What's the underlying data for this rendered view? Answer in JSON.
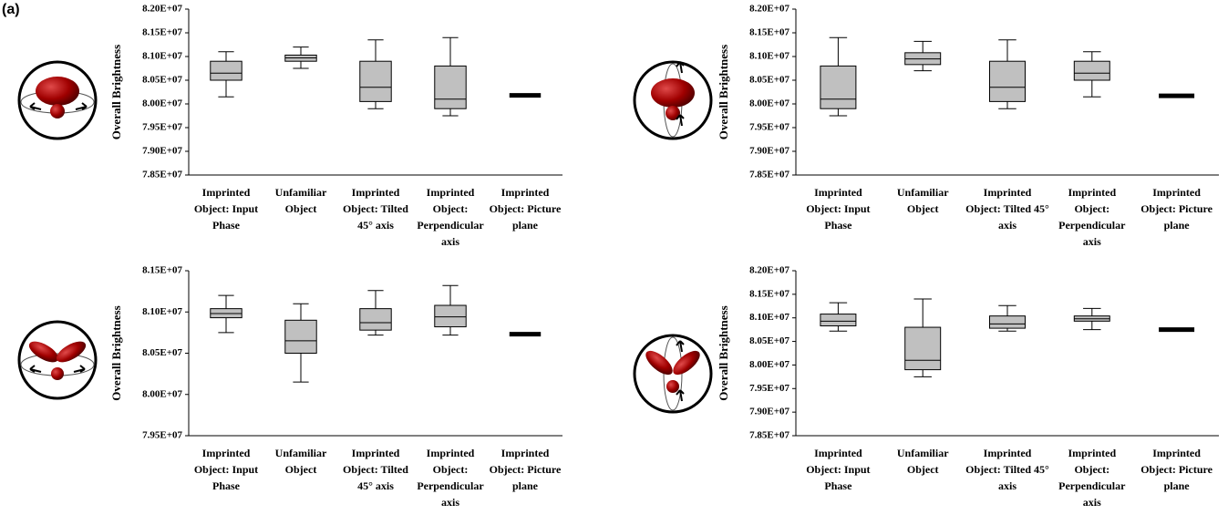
{
  "label": "(a)",
  "chart_data": [
    {
      "type": "box",
      "y_label": "Overall Brightness",
      "color": "#c0c0c0",
      "categories": [
        "Imprinted Object: Input Phase",
        "Unfamiliar Object",
        "Imprinted Object: Tilted 45° axis",
        "Imprinted Object: Perpendicular axis",
        "Imprinted Object: Picture plane"
      ],
      "boxes": [
        {
          "min": 80150000,
          "q1": 80500000,
          "median": 80650000,
          "q3": 80900000,
          "max": 81100000
        },
        {
          "min": 80750000,
          "q1": 80900000,
          "median": 80970000,
          "q3": 81030000,
          "max": 81200000
        },
        {
          "min": 79900000,
          "q1": 80050000,
          "median": 80350000,
          "q3": 80900000,
          "max": 81350000
        },
        {
          "min": 79750000,
          "q1": 79900000,
          "median": 80100000,
          "q3": 80800000,
          "max": 81400000
        },
        {
          "min": 80180000,
          "q1": 80180000,
          "median": 80180000,
          "q3": 80180000,
          "max": 80180000
        }
      ],
      "ylim": [
        78500000,
        82000000
      ],
      "yticks": [
        {
          "value": 78500000,
          "label": "7.85E+07"
        },
        {
          "value": 79000000,
          "label": "7.90E+07"
        },
        {
          "value": 79500000,
          "label": "7.95E+07"
        },
        {
          "value": 80000000,
          "label": "8.00E+07"
        },
        {
          "value": 80500000,
          "label": "8.05E+07"
        },
        {
          "value": 81000000,
          "label": "8.10E+07"
        },
        {
          "value": 81500000,
          "label": "8.15E+07"
        },
        {
          "value": 82000000,
          "label": "8.20E+07"
        }
      ]
    },
    {
      "type": "box",
      "y_label": "Overall Brightness",
      "color": "#c0c0c0",
      "categories": [
        "Imprinted Object: Input Phase",
        "Unfamiliar Object",
        "Imprinted Object: Tilted 45° axis",
        "Imprinted Object: Perpendicular axis",
        "Imprinted Object: Picture plane"
      ],
      "boxes": [
        {
          "min": 79750000,
          "q1": 79900000,
          "median": 80100000,
          "q3": 80800000,
          "max": 81400000
        },
        {
          "min": 80700000,
          "q1": 80830000,
          "median": 80950000,
          "q3": 81080000,
          "max": 81320000
        },
        {
          "min": 79900000,
          "q1": 80050000,
          "median": 80350000,
          "q3": 80900000,
          "max": 81350000
        },
        {
          "min": 80150000,
          "q1": 80500000,
          "median": 80650000,
          "q3": 80900000,
          "max": 81100000
        },
        {
          "min": 80170000,
          "q1": 80170000,
          "median": 80170000,
          "q3": 80170000,
          "max": 80170000
        }
      ],
      "ylim": [
        78500000,
        82000000
      ],
      "yticks": [
        {
          "value": 78500000,
          "label": "7.85E+07"
        },
        {
          "value": 79000000,
          "label": "7.90E+07"
        },
        {
          "value": 79500000,
          "label": "7.95E+07"
        },
        {
          "value": 80000000,
          "label": "8.00E+07"
        },
        {
          "value": 80500000,
          "label": "8.05E+07"
        },
        {
          "value": 81000000,
          "label": "8.10E+07"
        },
        {
          "value": 81500000,
          "label": "8.15E+07"
        },
        {
          "value": 82000000,
          "label": "8.20E+07"
        }
      ]
    },
    {
      "type": "box",
      "y_label": "Overall Brightness",
      "color": "#c0c0c0",
      "categories": [
        "Imprinted Object: Input Phase",
        "Unfamiliar Object",
        "Imprinted Object: Tilted 45° axis",
        "Imprinted Object: Perpendicular axis",
        "Imprinted Object: Picture plane"
      ],
      "boxes": [
        {
          "min": 80750000,
          "q1": 80930000,
          "median": 80980000,
          "q3": 81040000,
          "max": 81200000
        },
        {
          "min": 80150000,
          "q1": 80500000,
          "median": 80650000,
          "q3": 80900000,
          "max": 81100000
        },
        {
          "min": 80720000,
          "q1": 80780000,
          "median": 80870000,
          "q3": 81040000,
          "max": 81260000
        },
        {
          "min": 80720000,
          "q1": 80820000,
          "median": 80940000,
          "q3": 81080000,
          "max": 81320000
        },
        {
          "min": 80730000,
          "q1": 80730000,
          "median": 80730000,
          "q3": 80730000,
          "max": 80730000
        }
      ],
      "ylim": [
        79500000,
        81500000
      ],
      "yticks": [
        {
          "value": 79500000,
          "label": "7.95E+07"
        },
        {
          "value": 80000000,
          "label": "8.00E+07"
        },
        {
          "value": 80500000,
          "label": "8.05E+07"
        },
        {
          "value": 81000000,
          "label": "8.10E+07"
        },
        {
          "value": 81500000,
          "label": "8.15E+07"
        }
      ]
    },
    {
      "type": "box",
      "y_label": "Overall Brightness",
      "color": "#c0c0c0",
      "categories": [
        "Imprinted Object: Input Phase",
        "Unfamiliar Object",
        "Imprinted Object: Tilted 45° axis",
        "Imprinted Object: Perpendicular axis",
        "Imprinted Object: Picture plane"
      ],
      "boxes": [
        {
          "min": 80720000,
          "q1": 80830000,
          "median": 80930000,
          "q3": 81080000,
          "max": 81320000
        },
        {
          "min": 79750000,
          "q1": 79900000,
          "median": 80100000,
          "q3": 80800000,
          "max": 81400000
        },
        {
          "min": 80720000,
          "q1": 80780000,
          "median": 80870000,
          "q3": 81040000,
          "max": 81260000
        },
        {
          "min": 80750000,
          "q1": 80930000,
          "median": 80980000,
          "q3": 81040000,
          "max": 81200000
        },
        {
          "min": 80750000,
          "q1": 80750000,
          "median": 80750000,
          "q3": 80750000,
          "max": 80750000
        }
      ],
      "ylim": [
        78500000,
        82000000
      ],
      "yticks": [
        {
          "value": 78500000,
          "label": "7.85E+07"
        },
        {
          "value": 79000000,
          "label": "7.90E+07"
        },
        {
          "value": 79500000,
          "label": "7.95E+07"
        },
        {
          "value": 80000000,
          "label": "8.00E+07"
        },
        {
          "value": 80500000,
          "label": "8.05E+07"
        },
        {
          "value": 81000000,
          "label": "8.10E+07"
        },
        {
          "value": 81500000,
          "label": "8.15E+07"
        },
        {
          "value": 82000000,
          "label": "8.20E+07"
        }
      ]
    }
  ]
}
